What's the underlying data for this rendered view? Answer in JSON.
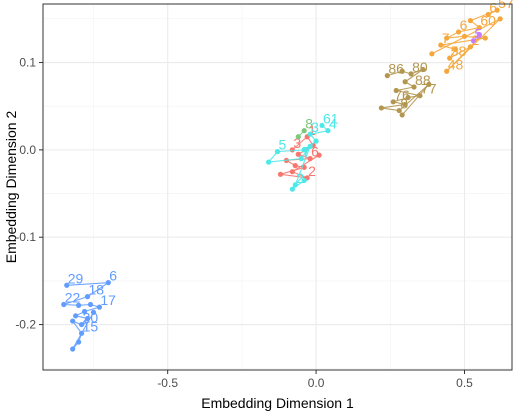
{
  "chart_data": {
    "type": "scatter",
    "title": "",
    "xlabel": "Embedding Dimension 1",
    "ylabel": "Embedding Dimension 2",
    "xlim": [
      -0.92,
      0.66
    ],
    "ylim": [
      -0.252,
      0.167
    ],
    "xticks": [
      -0.5,
      0.0,
      0.5
    ],
    "xtick_labels": [
      "-0.5",
      "0.0",
      "0.5"
    ],
    "yticks": [
      0.1,
      0.0,
      -0.1,
      -0.2
    ],
    "ytick_labels": [
      "0.1",
      "0.0",
      "-0.1",
      "-0.2"
    ],
    "grid": true,
    "legend": "none",
    "background": "#ffffff",
    "grid_color": "#ebebeb",
    "series": [
      {
        "color": "#619CFF",
        "points": [
          {
            "x": -0.84,
            "y": -0.155,
            "label": "29"
          },
          {
            "x": -0.7,
            "y": -0.152,
            "label": "6"
          },
          {
            "x": -0.77,
            "y": -0.168,
            "label": "18"
          },
          {
            "x": -0.85,
            "y": -0.177,
            "label": "22"
          },
          {
            "x": -0.8,
            "y": -0.178,
            "label": ""
          },
          {
            "x": -0.76,
            "y": -0.177,
            "label": ""
          },
          {
            "x": -0.73,
            "y": -0.18,
            "label": "17"
          },
          {
            "x": -0.78,
            "y": -0.185,
            "label": ""
          },
          {
            "x": -0.81,
            "y": -0.19,
            "label": ""
          },
          {
            "x": -0.77,
            "y": -0.193,
            "label": ""
          },
          {
            "x": -0.79,
            "y": -0.2,
            "label": "20"
          },
          {
            "x": -0.82,
            "y": -0.196,
            "label": ""
          },
          {
            "x": -0.79,
            "y": -0.21,
            "label": "15"
          },
          {
            "x": -0.8,
            "y": -0.22,
            "label": ""
          },
          {
            "x": -0.82,
            "y": -0.228,
            "label": ""
          },
          {
            "x": -0.75,
            "y": -0.186,
            "label": ""
          }
        ]
      },
      {
        "color": "#F8766D",
        "points": [
          {
            "x": -0.08,
            "y": 0.0,
            "label": "3"
          },
          {
            "x": -0.03,
            "y": 0.015,
            "label": "1"
          },
          {
            "x": -0.01,
            "y": 0.005,
            "label": ""
          },
          {
            "x": -0.06,
            "y": -0.005,
            "label": ""
          },
          {
            "x": -0.02,
            "y": -0.01,
            "label": "6"
          },
          {
            "x": -0.1,
            "y": -0.012,
            "label": ""
          },
          {
            "x": -0.07,
            "y": -0.018,
            "label": ""
          },
          {
            "x": -0.04,
            "y": -0.02,
            "label": ""
          },
          {
            "x": -0.12,
            "y": -0.028,
            "label": ""
          },
          {
            "x": -0.03,
            "y": -0.032,
            "label": "2"
          },
          {
            "x": -0.08,
            "y": -0.025,
            "label": ""
          },
          {
            "x": 0.01,
            "y": -0.006,
            "label": ""
          }
        ]
      },
      {
        "color": "#4DE8E8",
        "points": [
          {
            "x": 0.02,
            "y": 0.028,
            "label": "61"
          },
          {
            "x": 0.04,
            "y": 0.022,
            "label": "4"
          },
          {
            "x": -0.02,
            "y": 0.018,
            "label": "3"
          },
          {
            "x": 0.0,
            "y": 0.01,
            "label": ""
          },
          {
            "x": -0.04,
            "y": 0.0,
            "label": ""
          },
          {
            "x": -0.13,
            "y": -0.002,
            "label": "5"
          },
          {
            "x": -0.16,
            "y": -0.014,
            "label": ""
          },
          {
            "x": -0.05,
            "y": -0.01,
            "label": "7"
          },
          {
            "x": -0.02,
            "y": 0.004,
            "label": ""
          },
          {
            "x": -0.07,
            "y": -0.04,
            "label": "2"
          },
          {
            "x": -0.08,
            "y": -0.045,
            "label": ""
          },
          {
            "x": -0.04,
            "y": -0.035,
            "label": ""
          }
        ]
      },
      {
        "color": "#7CC87C",
        "points": [
          {
            "x": -0.04,
            "y": 0.022,
            "label": "8"
          },
          {
            "x": -0.06,
            "y": 0.015,
            "label": ""
          }
        ]
      },
      {
        "color": "#B39650",
        "points": [
          {
            "x": 0.24,
            "y": 0.085,
            "label": "86"
          },
          {
            "x": 0.29,
            "y": 0.09,
            "label": ""
          },
          {
            "x": 0.32,
            "y": 0.087,
            "label": "80"
          },
          {
            "x": 0.36,
            "y": 0.092,
            "label": ""
          },
          {
            "x": 0.3,
            "y": 0.078,
            "label": ""
          },
          {
            "x": 0.33,
            "y": 0.072,
            "label": "88"
          },
          {
            "x": 0.27,
            "y": 0.068,
            "label": ""
          },
          {
            "x": 0.35,
            "y": 0.062,
            "label": "77"
          },
          {
            "x": 0.31,
            "y": 0.06,
            "label": ""
          },
          {
            "x": 0.26,
            "y": 0.055,
            "label": "76"
          },
          {
            "x": 0.3,
            "y": 0.052,
            "label": ""
          },
          {
            "x": 0.22,
            "y": 0.048,
            "label": ""
          },
          {
            "x": 0.28,
            "y": 0.045,
            "label": "8"
          },
          {
            "x": 0.38,
            "y": 0.075,
            "label": ""
          },
          {
            "x": 0.29,
            "y": 0.04,
            "label": ""
          }
        ]
      },
      {
        "color": "#F5A73B",
        "points": [
          {
            "x": 0.58,
            "y": 0.155,
            "label": "6"
          },
          {
            "x": 0.61,
            "y": 0.16,
            "label": "57"
          },
          {
            "x": 0.52,
            "y": 0.148,
            "label": ""
          },
          {
            "x": 0.55,
            "y": 0.14,
            "label": "60"
          },
          {
            "x": 0.48,
            "y": 0.135,
            "label": "6"
          },
          {
            "x": 0.44,
            "y": 0.128,
            "label": ""
          },
          {
            "x": 0.5,
            "y": 0.13,
            "label": ""
          },
          {
            "x": 0.57,
            "y": 0.128,
            "label": ""
          },
          {
            "x": 0.42,
            "y": 0.12,
            "label": "7"
          },
          {
            "x": 0.47,
            "y": 0.115,
            "label": ""
          },
          {
            "x": 0.45,
            "y": 0.105,
            "label": "58"
          },
          {
            "x": 0.52,
            "y": 0.118,
            "label": "2"
          },
          {
            "x": 0.44,
            "y": 0.09,
            "label": "48"
          },
          {
            "x": 0.62,
            "y": 0.15,
            "label": ""
          },
          {
            "x": 0.39,
            "y": 0.11,
            "label": ""
          }
        ]
      },
      {
        "color": "#C77CFF",
        "points": [
          {
            "x": 0.53,
            "y": 0.125,
            "label": "5"
          },
          {
            "x": 0.55,
            "y": 0.132,
            "label": ""
          }
        ]
      }
    ]
  }
}
